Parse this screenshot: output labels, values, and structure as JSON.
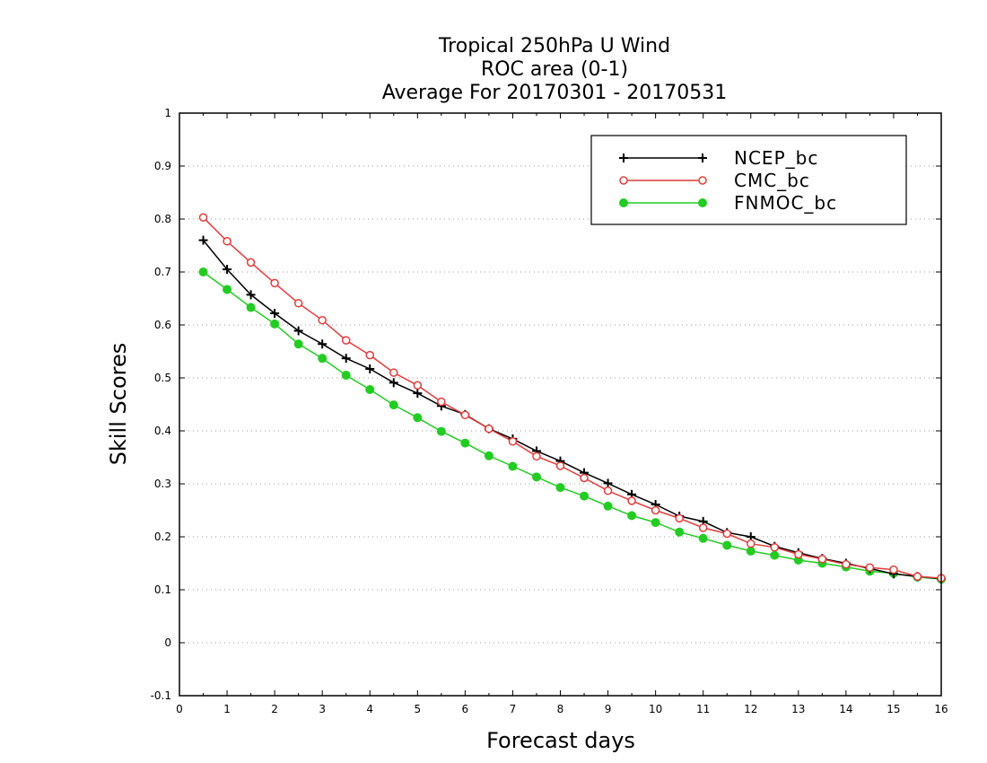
{
  "chart_data": {
    "type": "line",
    "title_lines": [
      "Tropical 250hPa U Wind",
      "ROC area (0-1)",
      "Average For 20170301 - 20170531"
    ],
    "xlabel": "Forecast days",
    "ylabel": "Skill Scores",
    "xlim": [
      0,
      16
    ],
    "ylim": [
      -0.1,
      1
    ],
    "x_ticks": [
      0,
      1,
      2,
      3,
      4,
      5,
      6,
      7,
      8,
      9,
      10,
      11,
      12,
      13,
      14,
      15,
      16
    ],
    "y_ticks": [
      -0.1,
      0,
      0.1,
      0.2,
      0.3,
      0.4,
      0.5,
      0.6,
      0.7,
      0.8,
      0.9,
      1
    ],
    "y_tick_labels": [
      "-0.1",
      "0",
      "0.1",
      "0.2",
      "0.3",
      "0.4",
      "0.5",
      "0.6",
      "0.7",
      "0.8",
      "0.9",
      "1"
    ],
    "grid": "horizontal dotted",
    "legend_position": "top-right",
    "x": [
      0.5,
      1,
      1.5,
      2,
      2.5,
      3,
      3.5,
      4,
      4.5,
      5,
      5.5,
      6,
      6.5,
      7,
      7.5,
      8,
      8.5,
      9,
      9.5,
      10,
      10.5,
      11,
      11.5,
      12,
      12.5,
      13,
      13.5,
      14,
      14.5,
      15,
      15.5,
      16
    ],
    "series": [
      {
        "name": "NCEP_bc",
        "color": "#000000",
        "marker": "plus",
        "values": [
          0.76,
          0.705,
          0.657,
          0.622,
          0.589,
          0.564,
          0.537,
          0.517,
          0.491,
          0.471,
          0.447,
          0.431,
          0.404,
          0.385,
          0.362,
          0.343,
          0.321,
          0.301,
          0.28,
          0.261,
          0.239,
          0.229,
          0.208,
          0.2,
          0.182,
          0.17,
          0.159,
          0.15,
          0.14,
          0.13,
          0.125,
          0.121
        ]
      },
      {
        "name": "CMC_bc",
        "color": "#e03c3c",
        "marker": "open-circle",
        "values": [
          0.803,
          0.758,
          0.718,
          0.679,
          0.641,
          0.609,
          0.571,
          0.543,
          0.51,
          0.486,
          0.455,
          0.43,
          0.404,
          0.38,
          0.352,
          0.334,
          0.311,
          0.287,
          0.268,
          0.25,
          0.235,
          0.217,
          0.206,
          0.187,
          0.18,
          0.167,
          0.158,
          0.148,
          0.142,
          0.138,
          0.125,
          0.122
        ]
      },
      {
        "name": "FNMOC_bc",
        "color": "#22cc22",
        "marker": "filled-circle",
        "values": [
          0.7,
          0.667,
          0.633,
          0.602,
          0.564,
          0.537,
          0.505,
          0.478,
          0.449,
          0.425,
          0.399,
          0.377,
          0.353,
          0.333,
          0.313,
          0.293,
          0.277,
          0.258,
          0.24,
          0.227,
          0.209,
          0.197,
          0.184,
          0.173,
          0.165,
          0.156,
          0.15,
          0.143,
          0.135,
          0.131,
          0.124,
          0.12
        ]
      }
    ]
  }
}
